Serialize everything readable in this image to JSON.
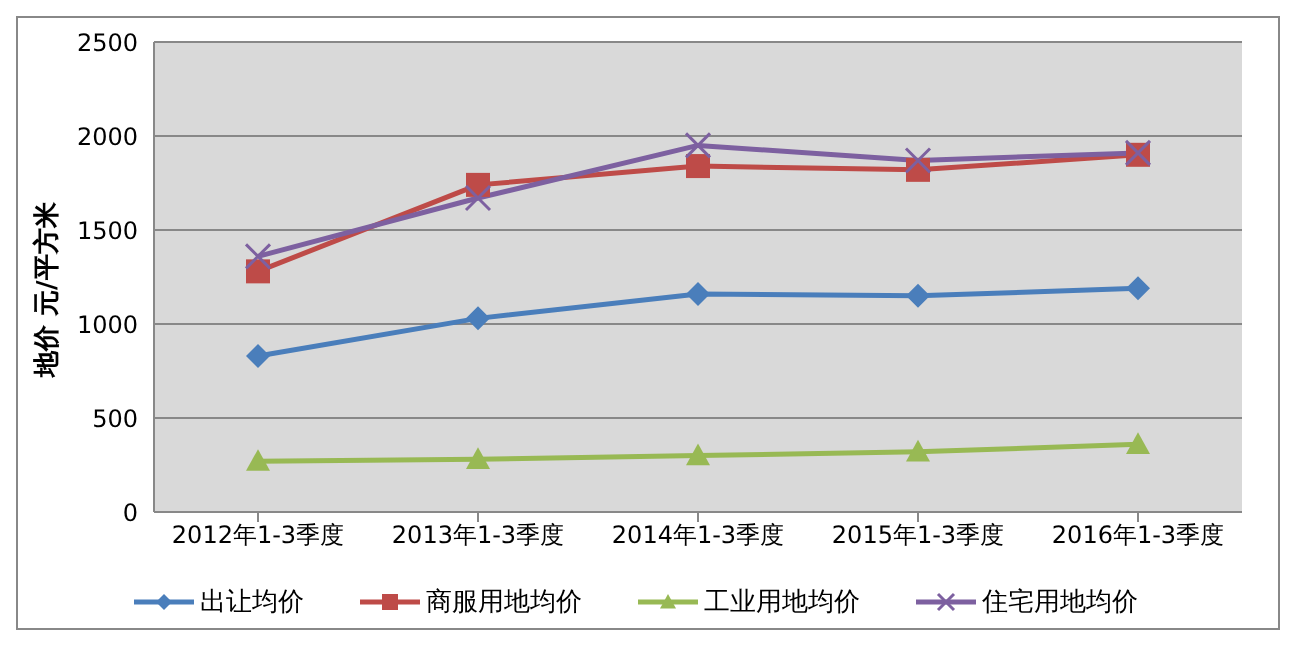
{
  "chart_data": {
    "type": "line",
    "ylabel": "地价 元/平方米",
    "categories": [
      "2012年1-3季度",
      "2013年1-3季度",
      "2014年1-3季度",
      "2015年1-3季度",
      "2016年1-3季度"
    ],
    "series": [
      {
        "name": "出让均价",
        "color": "#4a7ebb",
        "marker": "diamond",
        "values": [
          830,
          1030,
          1160,
          1150,
          1190
        ]
      },
      {
        "name": "商服用地均价",
        "color": "#be4b48",
        "marker": "square",
        "values": [
          1280,
          1740,
          1840,
          1820,
          1900
        ]
      },
      {
        "name": "工业用地均价",
        "color": "#98b954",
        "marker": "triangle",
        "values": [
          270,
          280,
          300,
          320,
          360
        ]
      },
      {
        "name": "住宅用地均价",
        "color": "#7d60a0",
        "marker": "cross",
        "values": [
          1360,
          1670,
          1950,
          1870,
          1910
        ]
      }
    ],
    "ylim": [
      0,
      2500
    ],
    "yticks": [
      0,
      500,
      1000,
      1500,
      2000,
      2500
    ],
    "grid": "y",
    "legend": "bottom"
  }
}
